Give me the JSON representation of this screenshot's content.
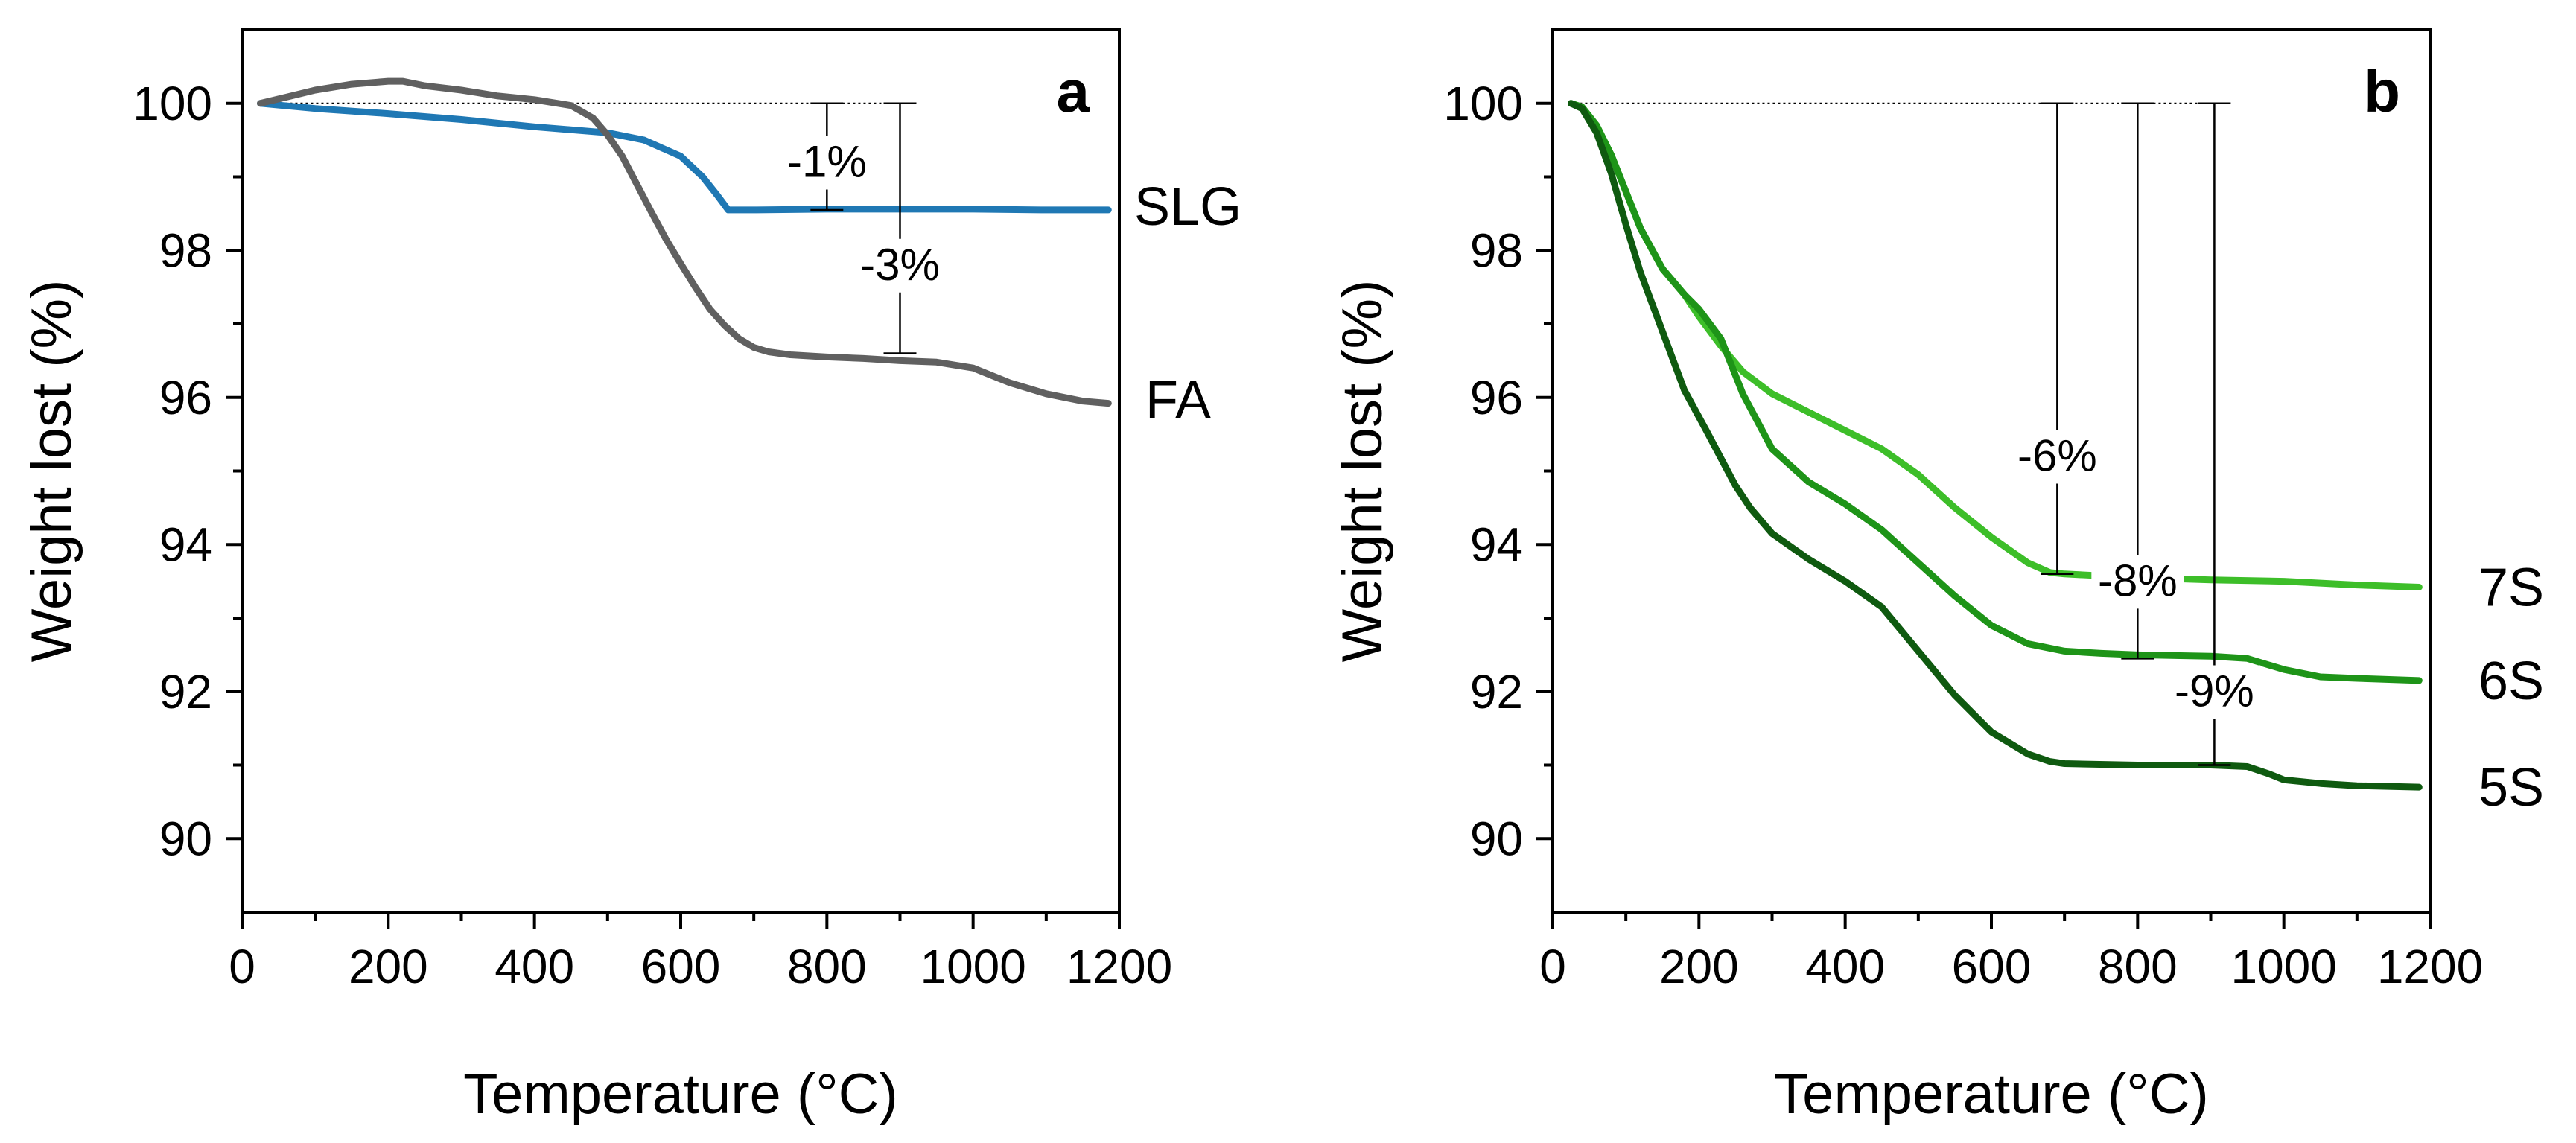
{
  "chart_data": [
    {
      "panel": "a",
      "type": "line",
      "xlabel": "Temperature (°C)",
      "ylabel": "Weight lost (%)",
      "xlim": [
        0,
        1200
      ],
      "ylim": [
        89,
        101
      ],
      "xticks": [
        0,
        200,
        400,
        600,
        800,
        1000,
        1200
      ],
      "xtick_labels": [
        "0",
        "200",
        "400",
        "600",
        "800",
        "1000",
        "1200"
      ],
      "yticks": [
        90,
        92,
        94,
        96,
        98,
        100
      ],
      "ytick_labels": [
        "90",
        "92",
        "94",
        "96",
        "98",
        "100"
      ],
      "reference_line": 100,
      "series": [
        {
          "name": "SLG",
          "color": "#1F78B4",
          "x": [
            25,
            100,
            200,
            300,
            400,
            500,
            550,
            600,
            630,
            650,
            665,
            700,
            800,
            900,
            1000,
            1100,
            1185
          ],
          "y": [
            100.0,
            99.93,
            99.86,
            99.78,
            99.68,
            99.6,
            99.5,
            99.28,
            99.0,
            98.75,
            98.55,
            98.55,
            98.56,
            98.56,
            98.56,
            98.55,
            98.55
          ]
        },
        {
          "name": "FA",
          "color": "#606060",
          "x": [
            25,
            100,
            150,
            200,
            220,
            250,
            300,
            350,
            400,
            450,
            480,
            500,
            520,
            540,
            560,
            580,
            600,
            620,
            640,
            660,
            680,
            700,
            720,
            750,
            800,
            850,
            900,
            950,
            1000,
            1050,
            1100,
            1150,
            1185
          ],
          "y": [
            100.0,
            100.18,
            100.26,
            100.3,
            100.3,
            100.24,
            100.18,
            100.1,
            100.05,
            99.97,
            99.8,
            99.57,
            99.28,
            98.9,
            98.52,
            98.15,
            97.82,
            97.5,
            97.2,
            96.98,
            96.8,
            96.68,
            96.62,
            96.58,
            96.55,
            96.53,
            96.5,
            96.48,
            96.4,
            96.2,
            96.05,
            95.95,
            95.92
          ]
        }
      ],
      "annotations": [
        {
          "label": "-1%",
          "x": 800,
          "y_top": 100.0,
          "y_bottom": 98.55
        },
        {
          "label": "-3%",
          "x": 900,
          "y_top": 100.0,
          "y_bottom": 96.6
        }
      ],
      "series_labels": [
        "SLG",
        "FA"
      ]
    },
    {
      "panel": "b",
      "type": "line",
      "xlabel": "Temperature (°C)",
      "ylabel": "Weight lost (%)",
      "xlim": [
        0,
        1200
      ],
      "ylim": [
        89,
        101
      ],
      "xticks": [
        0,
        200,
        400,
        600,
        800,
        1000,
        1200
      ],
      "xtick_labels": [
        "0",
        "200",
        "400",
        "600",
        "800",
        "1000",
        "1200"
      ],
      "yticks": [
        90,
        92,
        94,
        96,
        98,
        100
      ],
      "ytick_labels": [
        "90",
        "92",
        "94",
        "96",
        "98",
        "100"
      ],
      "reference_line": 100,
      "series": [
        {
          "name": "7S",
          "color": "#3DBE29",
          "x": [
            25,
            40,
            60,
            80,
            100,
            120,
            150,
            180,
            200,
            230,
            260,
            300,
            350,
            400,
            450,
            500,
            550,
            600,
            650,
            680,
            700,
            800,
            900,
            1000,
            1100,
            1185
          ],
          "y": [
            100.0,
            99.95,
            99.7,
            99.3,
            98.8,
            98.3,
            97.75,
            97.4,
            97.1,
            96.7,
            96.35,
            96.05,
            95.8,
            95.55,
            95.3,
            94.95,
            94.5,
            94.1,
            93.75,
            93.62,
            93.6,
            93.55,
            93.52,
            93.5,
            93.45,
            93.42
          ]
        },
        {
          "name": "6S",
          "color": "#1E9418",
          "x": [
            25,
            40,
            60,
            80,
            100,
            120,
            150,
            180,
            200,
            230,
            260,
            300,
            350,
            400,
            450,
            500,
            550,
            600,
            650,
            700,
            750,
            800,
            900,
            950,
            1000,
            1050,
            1100,
            1185
          ],
          "y": [
            100.0,
            99.95,
            99.7,
            99.3,
            98.8,
            98.3,
            97.75,
            97.4,
            97.2,
            96.8,
            96.05,
            95.3,
            94.85,
            94.55,
            94.2,
            93.75,
            93.3,
            92.9,
            92.65,
            92.55,
            92.52,
            92.5,
            92.48,
            92.45,
            92.3,
            92.2,
            92.18,
            92.15
          ]
        },
        {
          "name": "5S",
          "color": "#0F5A10",
          "x": [
            25,
            40,
            60,
            80,
            100,
            120,
            150,
            180,
            210,
            250,
            270,
            300,
            350,
            400,
            450,
            500,
            550,
            600,
            650,
            680,
            700,
            800,
            900,
            950,
            980,
            1000,
            1050,
            1100,
            1185
          ],
          "y": [
            100.0,
            99.93,
            99.6,
            99.05,
            98.35,
            97.7,
            96.9,
            96.1,
            95.55,
            94.8,
            94.5,
            94.15,
            93.8,
            93.5,
            93.15,
            92.55,
            91.95,
            91.45,
            91.15,
            91.05,
            91.02,
            91.0,
            91.0,
            90.98,
            90.88,
            90.8,
            90.75,
            90.72,
            90.7
          ]
        }
      ],
      "annotations": [
        {
          "label": "-6%",
          "x": 690,
          "y_top": 100.0,
          "y_bottom": 93.6
        },
        {
          "label": "-8%",
          "x": 800,
          "y_top": 100.0,
          "y_bottom": 92.45
        },
        {
          "label": "-9%",
          "x": 905,
          "y_top": 100.0,
          "y_bottom": 91.0
        }
      ],
      "series_labels": [
        "7S",
        "6S",
        "5S"
      ]
    }
  ]
}
